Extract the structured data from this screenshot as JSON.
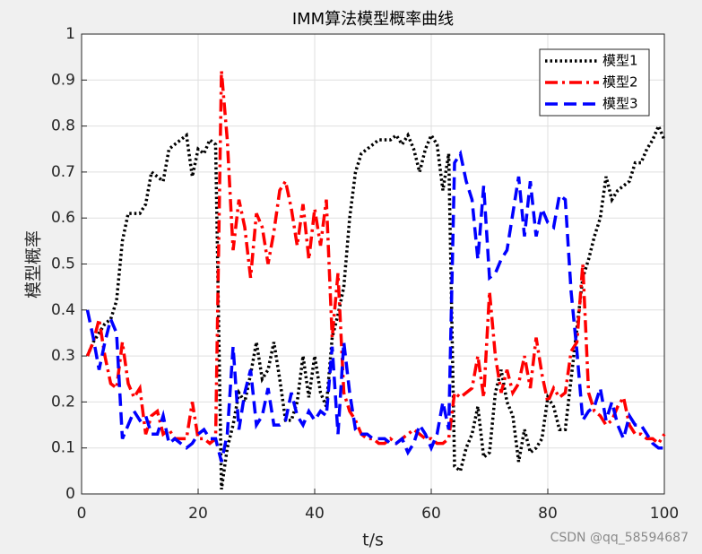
{
  "chart_data": {
    "type": "line",
    "title": "IMM算法模型概率曲线",
    "xlabel": "t/s",
    "ylabel": "模型概率",
    "watermark": "CSDN @qq_58594687",
    "x": [
      1,
      2,
      3,
      4,
      5,
      6,
      7,
      8,
      9,
      10,
      11,
      12,
      13,
      14,
      15,
      16,
      17,
      18,
      19,
      20,
      21,
      22,
      23,
      24,
      25,
      26,
      27,
      28,
      29,
      30,
      31,
      32,
      33,
      34,
      35,
      36,
      37,
      38,
      39,
      40,
      41,
      42,
      43,
      44,
      45,
      46,
      47,
      48,
      49,
      50,
      51,
      52,
      53,
      54,
      55,
      56,
      57,
      58,
      59,
      60,
      61,
      62,
      63,
      64,
      65,
      66,
      67,
      68,
      69,
      70,
      71,
      72,
      73,
      74,
      75,
      76,
      77,
      78,
      79,
      80,
      81,
      82,
      83,
      84,
      85,
      86,
      87,
      88,
      89,
      90,
      91,
      92,
      93,
      94,
      95,
      96,
      97,
      98,
      99,
      100
    ],
    "series": [
      {
        "name": "模型1",
        "color": "#000000",
        "linestyle": "dotted",
        "values": [
          0.3,
          0.33,
          0.35,
          0.37,
          0.38,
          0.42,
          0.55,
          0.61,
          0.61,
          0.61,
          0.63,
          0.7,
          0.69,
          0.68,
          0.75,
          0.76,
          0.77,
          0.78,
          0.69,
          0.75,
          0.74,
          0.77,
          0.76,
          0.01,
          0.1,
          0.15,
          0.22,
          0.2,
          0.26,
          0.33,
          0.25,
          0.27,
          0.33,
          0.25,
          0.16,
          0.16,
          0.2,
          0.3,
          0.21,
          0.3,
          0.22,
          0.19,
          0.34,
          0.39,
          0.45,
          0.6,
          0.7,
          0.74,
          0.75,
          0.76,
          0.77,
          0.77,
          0.77,
          0.78,
          0.76,
          0.78,
          0.75,
          0.7,
          0.75,
          0.78,
          0.76,
          0.66,
          0.74,
          0.06,
          0.05,
          0.1,
          0.13,
          0.19,
          0.08,
          0.09,
          0.22,
          0.27,
          0.2,
          0.17,
          0.07,
          0.14,
          0.09,
          0.1,
          0.12,
          0.21,
          0.19,
          0.14,
          0.14,
          0.25,
          0.36,
          0.47,
          0.51,
          0.56,
          0.6,
          0.69,
          0.64,
          0.66,
          0.67,
          0.68,
          0.72,
          0.72,
          0.75,
          0.77,
          0.8,
          0.77
        ]
      },
      {
        "name": "模型2",
        "color": "#ff0000",
        "linestyle": "dashdot",
        "values": [
          0.3,
          0.33,
          0.38,
          0.3,
          0.24,
          0.23,
          0.33,
          0.24,
          0.21,
          0.23,
          0.13,
          0.17,
          0.18,
          0.13,
          0.14,
          0.12,
          0.12,
          0.12,
          0.2,
          0.12,
          0.12,
          0.11,
          0.12,
          0.92,
          0.77,
          0.53,
          0.64,
          0.58,
          0.47,
          0.61,
          0.58,
          0.5,
          0.57,
          0.66,
          0.68,
          0.62,
          0.54,
          0.63,
          0.51,
          0.62,
          0.54,
          0.64,
          0.34,
          0.48,
          0.22,
          0.18,
          0.16,
          0.13,
          0.12,
          0.12,
          0.11,
          0.11,
          0.12,
          0.11,
          0.12,
          0.13,
          0.14,
          0.13,
          0.12,
          0.12,
          0.11,
          0.11,
          0.12,
          0.22,
          0.21,
          0.22,
          0.23,
          0.3,
          0.21,
          0.44,
          0.3,
          0.22,
          0.27,
          0.22,
          0.24,
          0.3,
          0.23,
          0.34,
          0.26,
          0.2,
          0.23,
          0.21,
          0.22,
          0.31,
          0.33,
          0.5,
          0.22,
          0.18,
          0.17,
          0.15,
          0.16,
          0.19,
          0.21,
          0.15,
          0.13,
          0.13,
          0.12,
          0.12,
          0.11,
          0.13
        ]
      },
      {
        "name": "模型3",
        "color": "#0000ff",
        "linestyle": "dashed",
        "values": [
          0.4,
          0.34,
          0.27,
          0.33,
          0.38,
          0.35,
          0.12,
          0.15,
          0.18,
          0.16,
          0.17,
          0.13,
          0.13,
          0.17,
          0.11,
          0.12,
          0.11,
          0.1,
          0.11,
          0.13,
          0.14,
          0.12,
          0.12,
          0.07,
          0.13,
          0.32,
          0.14,
          0.22,
          0.27,
          0.15,
          0.17,
          0.23,
          0.15,
          0.15,
          0.16,
          0.22,
          0.17,
          0.15,
          0.18,
          0.16,
          0.18,
          0.17,
          0.32,
          0.13,
          0.33,
          0.22,
          0.14,
          0.13,
          0.13,
          0.12,
          0.12,
          0.12,
          0.11,
          0.11,
          0.12,
          0.09,
          0.11,
          0.15,
          0.13,
          0.1,
          0.13,
          0.2,
          0.14,
          0.72,
          0.74,
          0.68,
          0.64,
          0.51,
          0.67,
          0.47,
          0.48,
          0.51,
          0.53,
          0.61,
          0.69,
          0.56,
          0.68,
          0.56,
          0.62,
          0.59,
          0.58,
          0.65,
          0.64,
          0.44,
          0.31,
          0.16,
          0.18,
          0.19,
          0.23,
          0.16,
          0.2,
          0.15,
          0.12,
          0.17,
          0.15,
          0.15,
          0.13,
          0.11,
          0.1,
          0.1
        ]
      }
    ],
    "xlim": [
      0,
      100
    ],
    "xticks": [
      0,
      20,
      40,
      60,
      80,
      100
    ],
    "ylim": [
      0,
      1
    ],
    "yticks": [
      0,
      0.1,
      0.2,
      0.3,
      0.4,
      0.5,
      0.6,
      0.7,
      0.8,
      0.9,
      1
    ],
    "grid": true,
    "legend": "northeast"
  }
}
